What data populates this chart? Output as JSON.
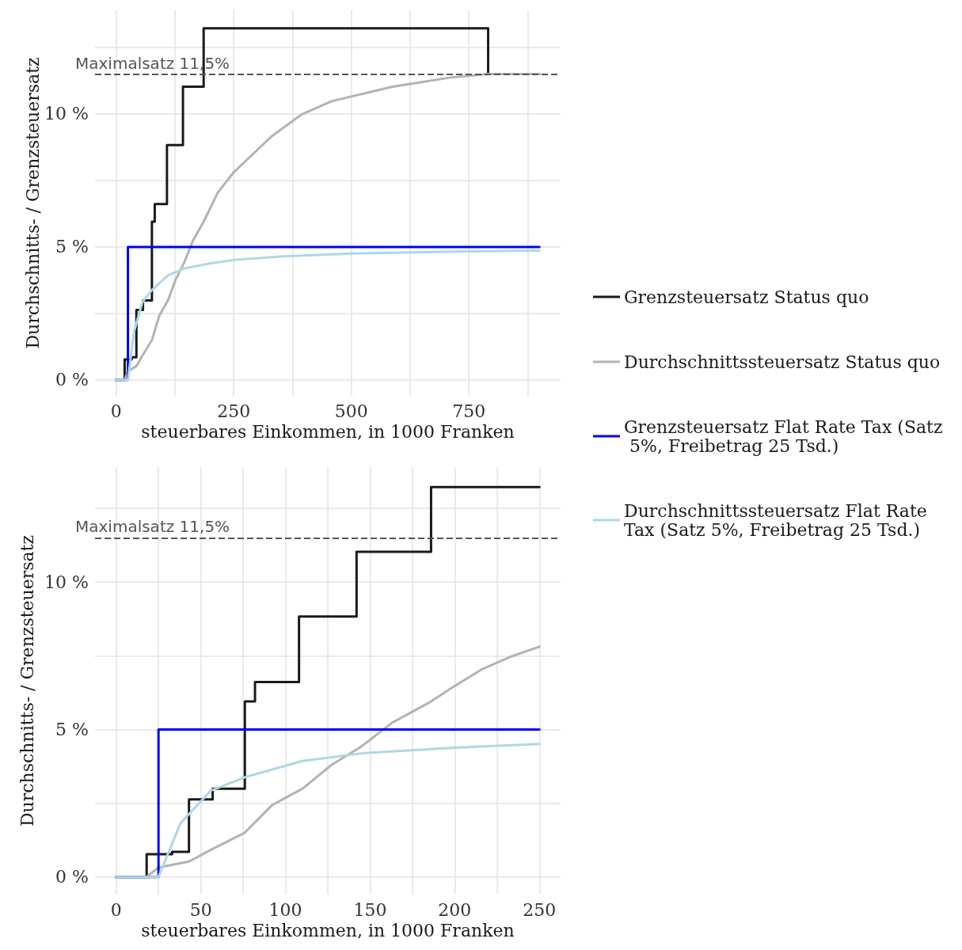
{
  "chart_data": [
    {
      "type": "line",
      "xlabel": "steuerbares Einkommen, in 1000 Franken",
      "ylabel": "Durchschnitts- / Grenzsteuersatz",
      "xlim": [
        -45,
        945
      ],
      "xticks": [
        0,
        {
          "value": 125,
          "label": null
        },
        250,
        {
          "value": 375,
          "label": null
        },
        500,
        {
          "value": 625,
          "label": null
        },
        750,
        {
          "value": 875,
          "label": null
        }
      ],
      "ylim": [
        -0.6,
        13.9
      ],
      "yticks": [
        {
          "value": 0,
          "label": "0 %"
        },
        {
          "value": 2.5,
          "label": null
        },
        {
          "value": 5,
          "label": "5 %"
        },
        {
          "value": 7.5,
          "label": null
        },
        {
          "value": 10,
          "label": "10 %"
        },
        {
          "value": 12.5,
          "label": null
        }
      ],
      "grid": true,
      "legend": "right",
      "ref_lines": [
        {
          "axis": "y",
          "value": 11.5,
          "label": "Maximalsatz 11,5%",
          "color": "#555555",
          "line_style": "dashed"
        }
      ],
      "series": [
        {
          "name": "Grenzsteuersatz Status quo",
          "type": "step",
          "color": "#1a1a1a",
          "x": [
            0,
            18,
            33,
            43,
            57,
            76,
            82,
            108,
            142,
            186,
            791,
            900
          ],
          "values": [
            0,
            0.77,
            0.85,
            2.63,
            2.99,
            5.95,
            6.61,
            8.83,
            11.03,
            13.22,
            11.5,
            11.5
          ]
        },
        {
          "name": "Durchschnittssteuersatz Status quo",
          "type": "line",
          "color": "#b3b3b3",
          "x": [
            0,
            18,
            25,
            43,
            56,
            76,
            92,
            110,
            127,
            145,
            163,
            186,
            216,
            250,
            330,
            394,
            458,
            586,
            714,
            791,
            900
          ],
          "values": [
            0,
            0,
            0.32,
            0.52,
            0.92,
            1.5,
            2.43,
            2.99,
            3.79,
            4.43,
            5.23,
            5.95,
            7.04,
            7.81,
            9.15,
            9.98,
            10.48,
            11.02,
            11.38,
            11.5,
            11.5
          ]
        },
        {
          "name": "Grenzsteuersatz Flat Rate Tax (Satz 5%, Freibetrag 25 Tsd.)",
          "type": "step",
          "color": "#0000ff",
          "x": [
            0,
            25,
            900
          ],
          "values": [
            0,
            5,
            5
          ]
        },
        {
          "name": "Durchschnittssteuersatz Flat Rate Tax (Satz 5%, Freibetrag 25 Tsd.)",
          "type": "line",
          "color": "#add8e6",
          "x": [
            0,
            25,
            38,
            56,
            76,
            110,
            145,
            199,
            250,
            350,
            500,
            700,
            900
          ],
          "values": [
            0,
            0,
            1.82,
            2.93,
            3.38,
            3.93,
            4.19,
            4.38,
            4.51,
            4.64,
            4.75,
            4.82,
            4.86
          ]
        }
      ]
    },
    {
      "type": "line",
      "xlabel": "steuerbares Einkommen, in 1000 Franken",
      "ylabel": "Durchschnitts- / Grenzsteuersatz",
      "xlim": [
        -12.5,
        262.5
      ],
      "xticks": [
        0,
        {
          "value": 25,
          "label": null
        },
        50,
        {
          "value": 75,
          "label": null
        },
        100,
        {
          "value": 125,
          "label": null
        },
        150,
        {
          "value": 175,
          "label": null
        },
        200,
        {
          "value": 225,
          "label": null
        },
        250
      ],
      "ylim": [
        -0.6,
        13.9
      ],
      "yticks": [
        {
          "value": 0,
          "label": "0 %"
        },
        {
          "value": 2.5,
          "label": null
        },
        {
          "value": 5,
          "label": "5 %"
        },
        {
          "value": 7.5,
          "label": null
        },
        {
          "value": 10,
          "label": "10 %"
        },
        {
          "value": 12.5,
          "label": null
        }
      ],
      "grid": true,
      "ref_lines": [
        {
          "axis": "y",
          "value": 11.5,
          "label": "Maximalsatz 11,5%",
          "color": "#555555",
          "line_style": "dashed"
        }
      ],
      "series": [
        {
          "type": "step",
          "color": "#1a1a1a",
          "x": [
            0,
            18,
            33,
            43,
            57,
            76,
            82,
            108,
            142,
            186,
            250
          ],
          "values": [
            0,
            0.77,
            0.85,
            2.63,
            2.99,
            5.95,
            6.61,
            8.83,
            11.03,
            13.22,
            13.22
          ]
        },
        {
          "type": "line",
          "color": "#b3b3b3",
          "x": [
            0,
            18,
            25,
            43,
            56,
            76,
            92,
            110,
            127,
            145,
            163,
            186,
            199,
            216,
            234,
            250
          ],
          "values": [
            0,
            0,
            0.32,
            0.52,
            0.92,
            1.5,
            2.43,
            2.99,
            3.79,
            4.43,
            5.23,
            5.95,
            6.44,
            7.04,
            7.49,
            7.81
          ]
        },
        {
          "type": "step",
          "color": "#0000ff",
          "x": [
            0,
            25,
            250
          ],
          "values": [
            0,
            5,
            5
          ]
        },
        {
          "type": "line",
          "color": "#add8e6",
          "x": [
            0,
            25,
            38,
            56,
            76,
            110,
            145,
            199,
            250
          ],
          "values": [
            0,
            0,
            1.82,
            2.93,
            3.38,
            3.93,
            4.19,
            4.38,
            4.51
          ]
        }
      ]
    }
  ]
}
